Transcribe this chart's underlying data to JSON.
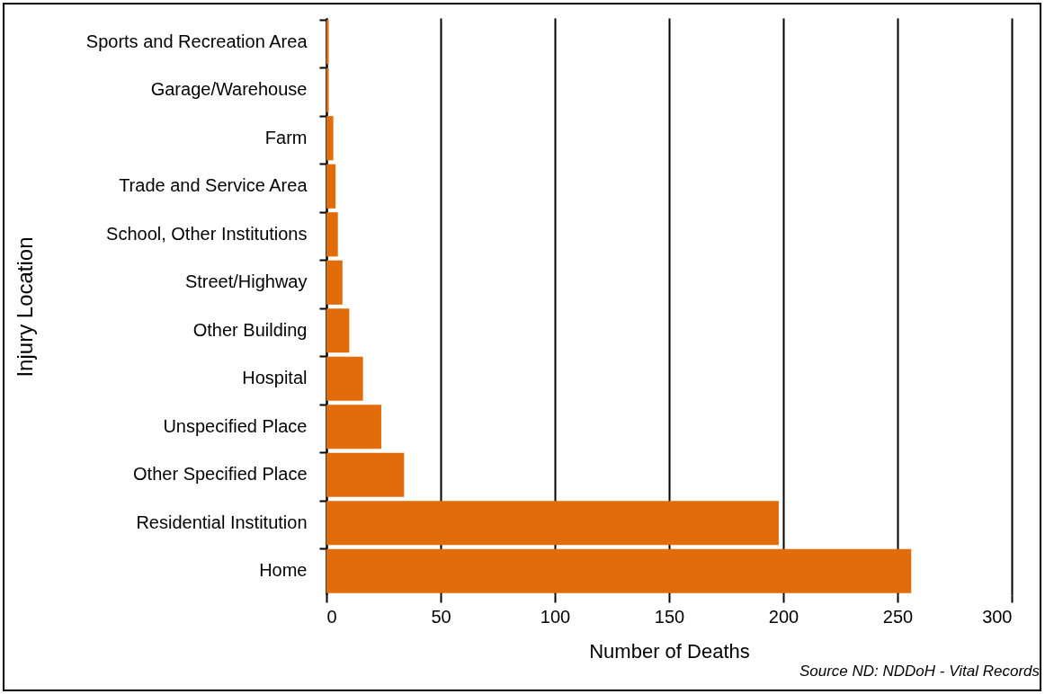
{
  "chart_data": {
    "type": "bar",
    "orientation": "horizontal",
    "xlabel": "Number of Deaths",
    "ylabel": "Injury Location",
    "categories": [
      "Sports and Recreation Area",
      "Garage/Warehouse",
      "Farm",
      "Trade and Service Area",
      "School, Other Institutions",
      "Street/Highway",
      "Other Building",
      "Hospital",
      "Unspecified Place",
      "Other Specified Place",
      "Residential Institution",
      "Home"
    ],
    "values": [
      1,
      1,
      3,
      4,
      5,
      7,
      10,
      16,
      24,
      34,
      198,
      256
    ],
    "color": "#e36c0a",
    "xlim": [
      0,
      300
    ],
    "xticks": [
      0,
      50,
      100,
      150,
      200,
      250,
      300
    ],
    "grid": "x",
    "annotations": [
      "Source ND: NDDoH - Vital Records"
    ]
  }
}
